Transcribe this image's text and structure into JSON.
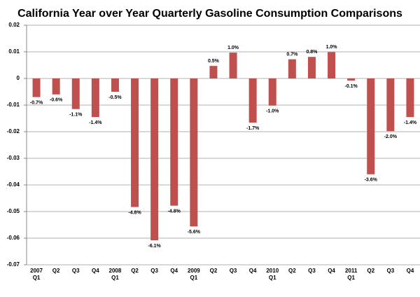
{
  "chart_data": {
    "type": "bar",
    "title": "California Year over Year Quarterly Gasoline Consumption Comparisons",
    "categories": [
      "2007\nQ1",
      "Q2",
      "Q3",
      "Q4",
      "2008\nQ1",
      "Q2",
      "Q3",
      "Q4",
      "2009\nQ1",
      "Q2",
      "Q3",
      "Q4",
      "2010\nQ1",
      "Q2",
      "Q3",
      "Q4",
      "2011\nQ1",
      "Q2",
      "Q3",
      "Q4"
    ],
    "values": [
      -0.007,
      -0.006,
      -0.0115,
      -0.0145,
      -0.005,
      -0.0483,
      -0.0608,
      -0.0478,
      -0.0556,
      0.0047,
      0.0097,
      -0.0166,
      -0.0102,
      0.0072,
      0.0081,
      0.0099,
      -0.0008,
      -0.036,
      -0.0198,
      -0.0145
    ],
    "value_labels": [
      "-0.7%",
      "-0.6%",
      "-1.1%",
      "-1.4%",
      "-0.5%",
      "-4.8%",
      "-6.1%",
      "-4.8%",
      "-5.6%",
      "0.5%",
      "1.0%",
      "-1.7%",
      "-1.0%",
      "0.7%",
      "0.8%",
      "1.0%",
      "-0.1%",
      "-3.6%",
      "-2.0%",
      "-1.4%"
    ],
    "color": "#c0504d",
    "ylim": [
      -0.07,
      0.02
    ],
    "yticks": [
      0.02,
      0.01,
      0,
      -0.01,
      -0.02,
      -0.03,
      -0.04,
      -0.05,
      -0.06,
      -0.07
    ],
    "grid": true
  }
}
